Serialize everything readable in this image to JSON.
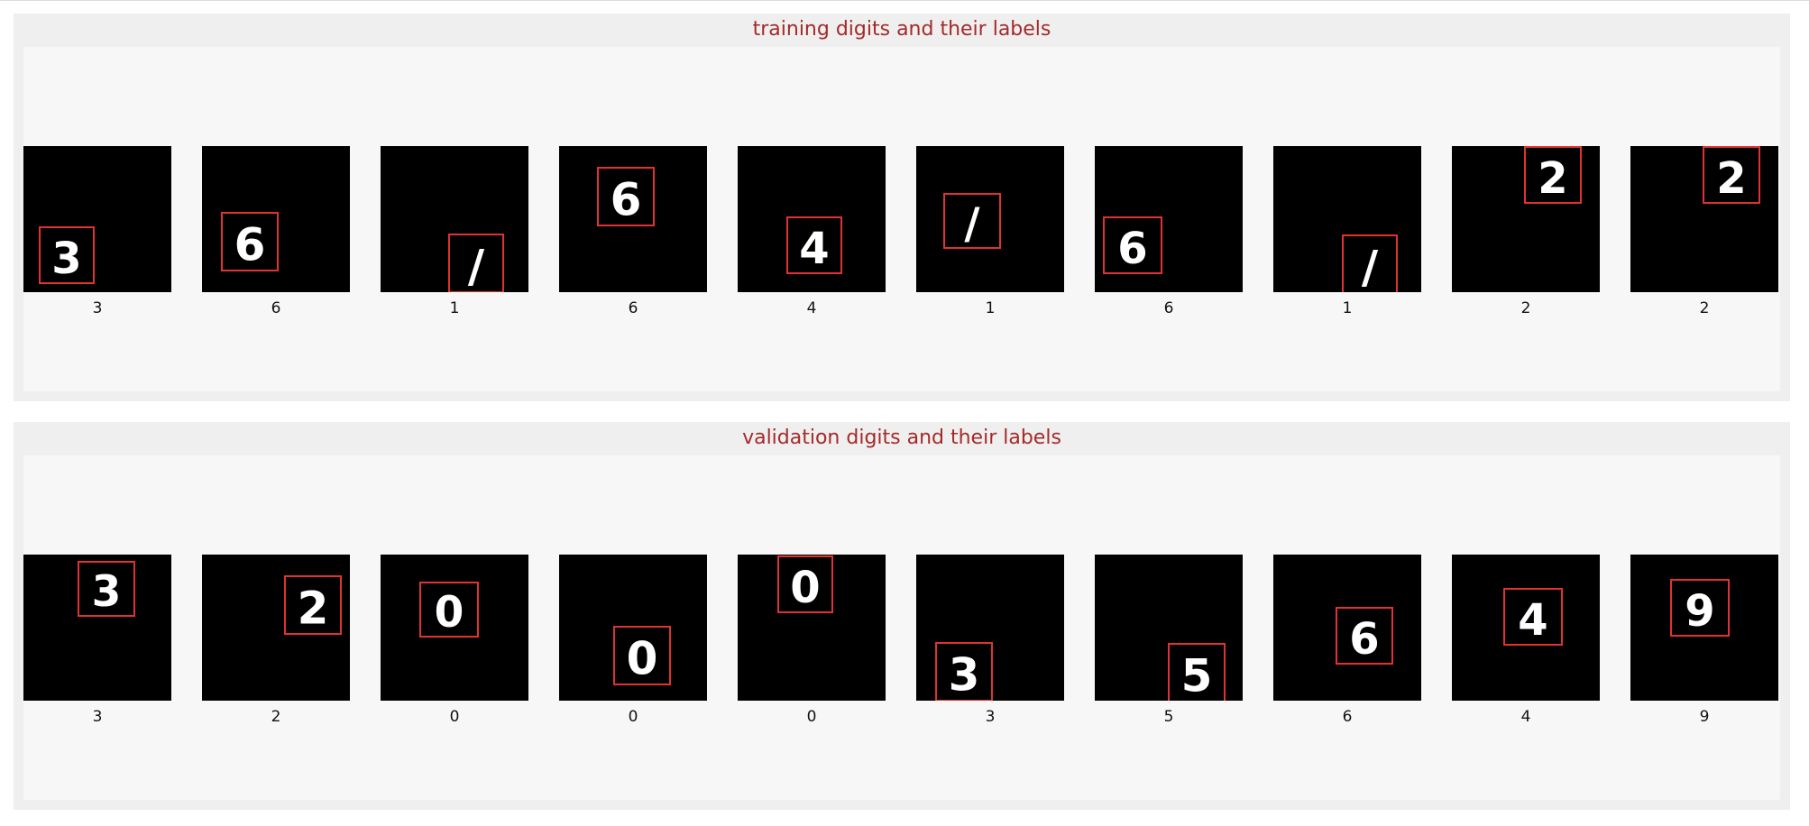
{
  "colors": {
    "title": "#a52a2a",
    "box": "#e03232",
    "digit": "#ffffff",
    "image_bg": "#000000"
  },
  "panels": [
    {
      "title": "training digits and their labels",
      "labels": [
        "3",
        "6",
        "1",
        "6",
        "4",
        "1",
        "6",
        "1",
        "2",
        "2"
      ],
      "digits": [
        "3",
        "6",
        "/",
        "6",
        "4",
        "/",
        "6",
        "/",
        "2",
        "2"
      ]
    },
    {
      "title": "validation digits and their labels",
      "labels": [
        "3",
        "2",
        "0",
        "0",
        "0",
        "3",
        "5",
        "6",
        "4",
        "9"
      ],
      "digits": [
        "3",
        "2",
        "0",
        "0",
        "0",
        "3",
        "5",
        "6",
        "4",
        "9"
      ]
    }
  ]
}
